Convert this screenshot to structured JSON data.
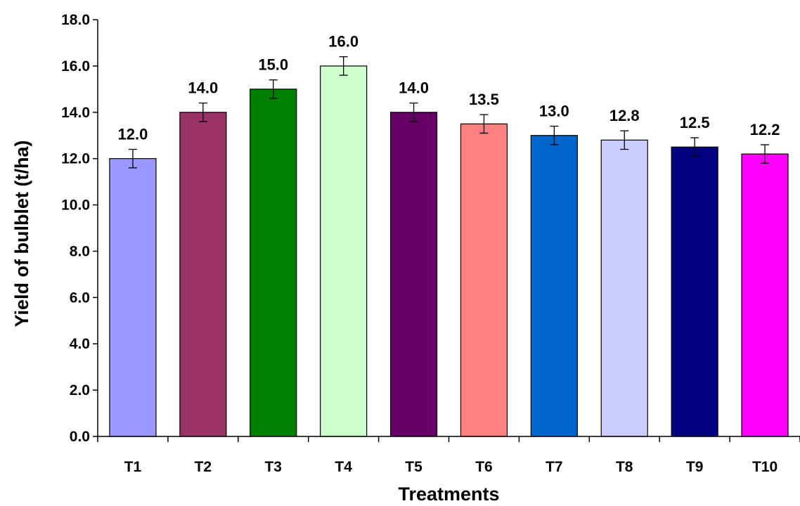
{
  "chart_data": {
    "type": "bar",
    "title": "",
    "xlabel": "Treatments",
    "ylabel": "Yield of bulblet (t/ha)",
    "ylim": [
      0,
      18
    ],
    "yticks": [
      "0.0",
      "2.0",
      "4.0",
      "6.0",
      "8.0",
      "10.0",
      "12.0",
      "14.0",
      "16.0",
      "18.0"
    ],
    "grid": false,
    "legend": "none",
    "categories": [
      "T1",
      "T2",
      "T3",
      "T4",
      "T5",
      "T6",
      "T7",
      "T8",
      "T9",
      "T10"
    ],
    "values": [
      12.0,
      14.0,
      15.0,
      16.0,
      14.0,
      13.5,
      13.0,
      12.8,
      12.5,
      12.2
    ],
    "value_labels": [
      "12.0",
      "14.0",
      "15.0",
      "16.0",
      "14.0",
      "13.5",
      "13.0",
      "12.8",
      "12.5",
      "12.2"
    ],
    "error": [
      0.4,
      0.4,
      0.4,
      0.4,
      0.4,
      0.4,
      0.4,
      0.4,
      0.4,
      0.4
    ],
    "colors": [
      "#9999FF",
      "#993366",
      "#008000",
      "#CCFFCC",
      "#660066",
      "#FF8080",
      "#0066CC",
      "#CCCCFF",
      "#000080",
      "#FF00FF"
    ]
  }
}
